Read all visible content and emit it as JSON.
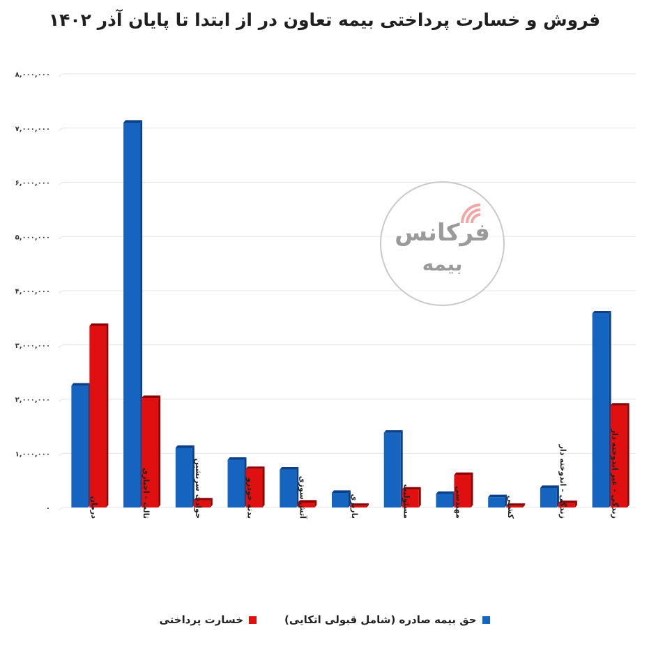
{
  "chart_data": {
    "type": "bar",
    "title": "فروش و خسارت پرداختی بیمه تعاون در از ابتدا تا پایان آذر ۱۴۰۲",
    "categories": [
      "درمان",
      "ثالث - اجباری",
      "حوادث سرنشین",
      "بدنه خودرو",
      "آتش سوزی",
      "باربری",
      "مسئولیت",
      "مهندسی",
      "کشتی",
      "زندگی - اندوخته دار",
      "زندگی - غیر اندوخته دار"
    ],
    "series": [
      {
        "name": "حق بیمه صادره (شامل قبولی اتکایی)",
        "values": [
          2250000,
          7100000,
          1100000,
          880000,
          700000,
          270000,
          1380000,
          250000,
          190000,
          360000,
          3580000
        ]
      },
      {
        "name": "خسارت پرداختی",
        "values": [
          3350000,
          2020000,
          130000,
          710000,
          90000,
          30000,
          330000,
          600000,
          30000,
          80000,
          1880000
        ]
      }
    ],
    "ylim": [
      0,
      8000000
    ],
    "yticks": [
      0,
      1000000,
      2000000,
      3000000,
      4000000,
      5000000,
      6000000,
      7000000,
      8000000
    ],
    "ytick_labels": [
      "۰",
      "۱,۰۰۰,۰۰۰",
      "۲,۰۰۰,۰۰۰",
      "۳,۰۰۰,۰۰۰",
      "۴,۰۰۰,۰۰۰",
      "۵,۰۰۰,۰۰۰",
      "۶,۰۰۰,۰۰۰",
      "۷,۰۰۰,۰۰۰",
      "۸,۰۰۰,۰۰۰"
    ],
    "xlabel": "",
    "ylabel": "",
    "grid": true,
    "legend_position": "bottom",
    "colors": {
      "series_0": "#1565c0",
      "series_0_dark": "#0b3f86",
      "series_1": "#e01010",
      "series_1_dark": "#8f0000",
      "grid": "#e3e3e3"
    }
  },
  "watermark": {
    "line1": "فرکانس",
    "line2": "بیمه"
  }
}
